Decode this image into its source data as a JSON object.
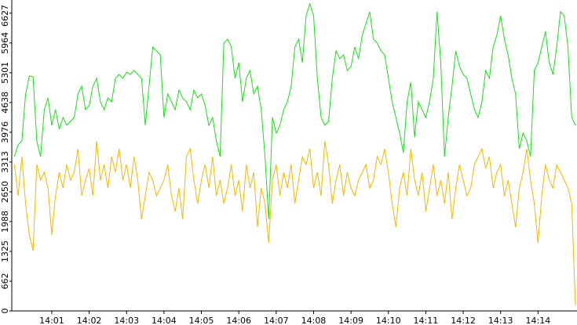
{
  "chart_data": {
    "type": "line",
    "categories": [
      null,
      null,
      null,
      null,
      null,
      null,
      null,
      null,
      null,
      null,
      "14:01",
      null,
      null,
      null,
      null,
      null,
      null,
      null,
      null,
      null,
      "14:02",
      null,
      null,
      null,
      null,
      null,
      null,
      null,
      null,
      null,
      "14:03",
      null,
      null,
      null,
      null,
      null,
      null,
      null,
      null,
      null,
      "14:04",
      null,
      null,
      null,
      null,
      null,
      null,
      null,
      null,
      null,
      "14:05",
      null,
      null,
      null,
      null,
      null,
      null,
      null,
      null,
      null,
      "14:06",
      null,
      null,
      null,
      null,
      null,
      null,
      null,
      null,
      null,
      "14:07",
      null,
      null,
      null,
      null,
      null,
      null,
      null,
      null,
      null,
      "14:08",
      null,
      null,
      null,
      null,
      null,
      null,
      null,
      null,
      null,
      "14:09",
      null,
      null,
      null,
      null,
      null,
      null,
      null,
      null,
      null,
      "14:10",
      null,
      null,
      null,
      null,
      null,
      null,
      null,
      null,
      null,
      "14:11",
      null,
      null,
      null,
      null,
      null,
      null,
      null,
      null,
      null,
      "14:12",
      null,
      null,
      null,
      null,
      null,
      null,
      null,
      null,
      null,
      "14:13",
      null,
      null,
      null,
      null,
      null,
      null,
      null,
      null,
      null,
      "14:14",
      null,
      null,
      null,
      null,
      null,
      null,
      null,
      null,
      null,
      null
    ],
    "series": [
      {
        "color": "#19e019",
        "values": [
          3434,
          3695,
          3782,
          4828,
          5229,
          5212,
          3782,
          3434,
          4480,
          4741,
          4131,
          4480,
          4044,
          4305,
          4131,
          4218,
          4305,
          4828,
          5002,
          4480,
          4567,
          5002,
          5177,
          4654,
          4480,
          4741,
          4654,
          5177,
          5264,
          5177,
          5316,
          5264,
          5351,
          5264,
          5177,
          4131,
          5002,
          5874,
          5787,
          5700,
          4305,
          4828,
          4654,
          4480,
          4915,
          4741,
          4654,
          4480,
          4915,
          4741,
          4828,
          4567,
          4131,
          4305,
          3782,
          3434,
          5961,
          6048,
          5874,
          5177,
          5525,
          4654,
          5177,
          5351,
          4828,
          5002,
          4480,
          3434,
          2039,
          4305,
          3957,
          4131,
          4480,
          4654,
          5002,
          5874,
          6048,
          5525,
          6571,
          6833,
          6571,
          5177,
          4305,
          4131,
          4218,
          5177,
          5787,
          5612,
          5700,
          5351,
          5438,
          5874,
          5612,
          6135,
          6397,
          6658,
          6048,
          5961,
          5787,
          5700,
          5177,
          4654,
          4305,
          3957,
          3521,
          4654,
          5090,
          3869,
          4654,
          4480,
          4305,
          4654,
          5177,
          6658,
          5525,
          3434,
          4305,
          5002,
          5787,
          5438,
          5264,
          5177,
          4828,
          4480,
          4305,
          4654,
          5351,
          5177,
          5874,
          6135,
          6571,
          6048,
          5700,
          5177,
          4828,
          3608,
          3957,
          3782,
          3434,
          5351,
          5525,
          5874,
          6222,
          5525,
          5264,
          5874,
          6658,
          6571,
          5874,
          4305,
          4131
        ]
      },
      {
        "color": "#f5b800",
        "values": [
          3259,
          2562,
          3434,
          2388,
          1691,
          1342,
          3259,
          2911,
          3085,
          2736,
          1691,
          2562,
          3085,
          2736,
          3259,
          2911,
          3085,
          3608,
          2562,
          2911,
          3172,
          2562,
          3782,
          2911,
          3259,
          2736,
          3434,
          3085,
          3608,
          2911,
          3259,
          2736,
          3434,
          2911,
          2039,
          2562,
          3085,
          2911,
          2562,
          2736,
          2911,
          3259,
          2562,
          2214,
          2736,
          2039,
          3434,
          3608,
          2911,
          2388,
          2911,
          3259,
          2736,
          3434,
          2562,
          2911,
          2388,
          2736,
          3259,
          2562,
          2911,
          2214,
          3259,
          2736,
          3085,
          1865,
          2736,
          2388,
          1516,
          2911,
          3259,
          2562,
          3085,
          2736,
          3259,
          2388,
          2911,
          3434,
          3259,
          3608,
          2736,
          3085,
          2562,
          3782,
          3259,
          2388,
          2911,
          3259,
          2562,
          3085,
          2736,
          2562,
          2911,
          3085,
          3259,
          2736,
          2911,
          3434,
          3259,
          3608,
          3085,
          2388,
          1865,
          2736,
          3085,
          2562,
          3608,
          2911,
          2562,
          3085,
          2214,
          2736,
          3259,
          2562,
          2911,
          2388,
          3085,
          2039,
          2736,
          3259,
          2911,
          2562,
          2736,
          3259,
          3434,
          3608,
          3172,
          3434,
          2736,
          3085,
          3259,
          2562,
          2911,
          2388,
          1865,
          2736,
          3085,
          3608,
          2911,
          2388,
          1516,
          2562,
          3259,
          2911,
          2736,
          3259,
          3085,
          2911,
          2736,
          2388,
          122
        ]
      }
    ],
    "ylim": [
      0,
      6920
    ],
    "yticks": [
      0,
      662,
      1325,
      1988,
      2650,
      3313,
      3976,
      4638,
      5301,
      5964,
      6627
    ],
    "grid": false
  }
}
